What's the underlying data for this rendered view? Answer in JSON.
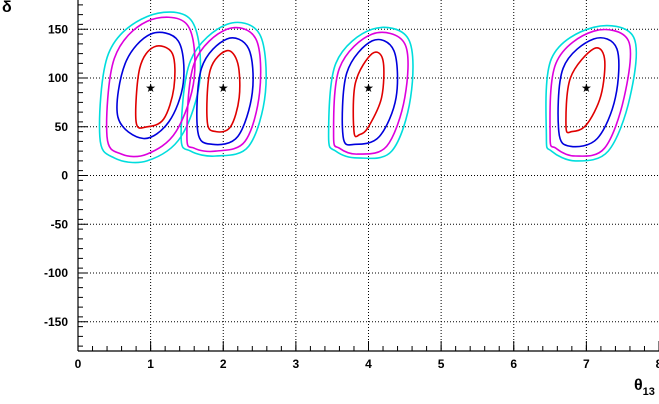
{
  "chart_data": {
    "type": "contour",
    "title": "",
    "xlabel": "θ",
    "xlabel_subscript": "13",
    "ylabel": "δ",
    "xlim": [
      0,
      8
    ],
    "ylim": [
      -180,
      180
    ],
    "x_ticks": [
      0,
      1,
      2,
      3,
      4,
      5,
      6,
      7,
      8
    ],
    "y_ticks": [
      -150,
      -100,
      -50,
      0,
      50,
      100,
      150
    ],
    "grid": true,
    "grid_style": "dotted",
    "colors": {
      "inner": "#e00000",
      "second": "#0000dd",
      "third": "#dd00dd",
      "outer": "#00dddd",
      "marker": "#000000",
      "axis": "#000000",
      "grid": "#000000"
    },
    "best_fit_points": [
      {
        "x": 1,
        "y": 90
      },
      {
        "x": 2,
        "y": 90
      },
      {
        "x": 4,
        "y": 90
      },
      {
        "x": 7,
        "y": 90
      }
    ],
    "series": [
      {
        "role": "inner",
        "color": "#e00000",
        "contours": [
          [
            [
              0.8,
              55
            ],
            [
              0.85,
              110
            ],
            [
              1.05,
              132
            ],
            [
              1.3,
              125
            ],
            [
              1.32,
              90
            ],
            [
              1.18,
              58
            ],
            [
              0.95,
              50
            ]
          ],
          [
            [
              1.78,
              55
            ],
            [
              1.82,
              108
            ],
            [
              2.05,
              128
            ],
            [
              2.2,
              115
            ],
            [
              2.22,
              80
            ],
            [
              2.1,
              50
            ],
            [
              1.9,
              45
            ]
          ],
          [
            [
              3.8,
              45
            ],
            [
              3.82,
              95
            ],
            [
              4.05,
              125
            ],
            [
              4.2,
              118
            ],
            [
              4.18,
              80
            ],
            [
              4.0,
              50
            ],
            [
              3.88,
              42
            ]
          ],
          [
            [
              6.72,
              50
            ],
            [
              6.78,
              100
            ],
            [
              7.1,
              130
            ],
            [
              7.25,
              120
            ],
            [
              7.2,
              82
            ],
            [
              7.0,
              52
            ],
            [
              6.8,
              45
            ]
          ]
        ]
      },
      {
        "role": "second",
        "color": "#0000dd",
        "contours": [
          [
            [
              0.55,
              60
            ],
            [
              0.65,
              115
            ],
            [
              1.0,
              145
            ],
            [
              1.38,
              138
            ],
            [
              1.45,
              95
            ],
            [
              1.25,
              55
            ],
            [
              0.9,
              38
            ]
          ],
          [
            [
              1.65,
              45
            ],
            [
              1.7,
              110
            ],
            [
              2.05,
              140
            ],
            [
              2.35,
              130
            ],
            [
              2.4,
              85
            ],
            [
              2.2,
              40
            ],
            [
              1.85,
              32
            ]
          ],
          [
            [
              3.65,
              40
            ],
            [
              3.7,
              105
            ],
            [
              4.05,
              138
            ],
            [
              4.35,
              128
            ],
            [
              4.38,
              80
            ],
            [
              4.15,
              40
            ],
            [
              3.82,
              32
            ]
          ],
          [
            [
              6.62,
              45
            ],
            [
              6.68,
              110
            ],
            [
              7.1,
              140
            ],
            [
              7.42,
              130
            ],
            [
              7.4,
              80
            ],
            [
              7.15,
              38
            ],
            [
              6.78,
              30
            ]
          ]
        ]
      },
      {
        "role": "third",
        "color": "#dd00dd",
        "contours": [
          [
            [
              0.4,
              40
            ],
            [
              0.5,
              120
            ],
            [
              0.95,
              158
            ],
            [
              1.5,
              155
            ],
            [
              1.6,
              100
            ],
            [
              1.35,
              45
            ],
            [
              0.95,
              22
            ],
            [
              0.6,
              22
            ]
          ],
          [
            [
              1.5,
              40
            ],
            [
              1.6,
              115
            ],
            [
              2.05,
              150
            ],
            [
              2.45,
              140
            ],
            [
              2.5,
              85
            ],
            [
              2.3,
              35
            ],
            [
              1.9,
              25
            ],
            [
              1.6,
              28
            ]
          ],
          [
            [
              3.52,
              40
            ],
            [
              3.6,
              110
            ],
            [
              4.05,
              145
            ],
            [
              4.5,
              135
            ],
            [
              4.5,
              80
            ],
            [
              4.25,
              30
            ],
            [
              3.85,
              22
            ],
            [
              3.6,
              28
            ]
          ],
          [
            [
              6.5,
              40
            ],
            [
              6.58,
              115
            ],
            [
              7.1,
              148
            ],
            [
              7.58,
              138
            ],
            [
              7.52,
              80
            ],
            [
              7.25,
              28
            ],
            [
              6.85,
              20
            ],
            [
              6.58,
              28
            ]
          ]
        ]
      },
      {
        "role": "outer",
        "color": "#00dddd",
        "contours": [
          [
            [
              0.3,
              40
            ],
            [
              0.42,
              125
            ],
            [
              0.95,
              163
            ],
            [
              1.55,
              160
            ],
            [
              1.68,
              100
            ],
            [
              1.42,
              40
            ],
            [
              0.95,
              15
            ],
            [
              0.5,
              18
            ]
          ],
          [
            [
              1.42,
              40
            ],
            [
              1.55,
              118
            ],
            [
              2.05,
              155
            ],
            [
              2.5,
              145
            ],
            [
              2.58,
              85
            ],
            [
              2.35,
              30
            ],
            [
              1.9,
              20
            ],
            [
              1.55,
              25
            ]
          ],
          [
            [
              3.45,
              40
            ],
            [
              3.55,
              115
            ],
            [
              4.05,
              150
            ],
            [
              4.55,
              140
            ],
            [
              4.58,
              80
            ],
            [
              4.32,
              25
            ],
            [
              3.85,
              18
            ],
            [
              3.55,
              25
            ]
          ],
          [
            [
              6.45,
              40
            ],
            [
              6.52,
              120
            ],
            [
              7.1,
              152
            ],
            [
              7.65,
              142
            ],
            [
              7.6,
              80
            ],
            [
              7.3,
              25
            ],
            [
              6.85,
              15
            ],
            [
              6.52,
              25
            ]
          ]
        ]
      }
    ]
  }
}
